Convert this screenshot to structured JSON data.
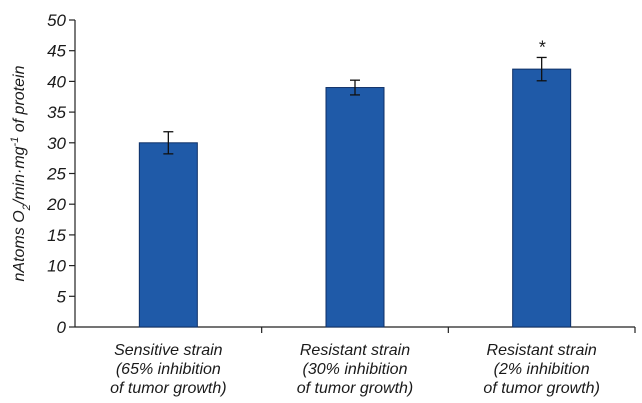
{
  "chart_data": {
    "type": "bar",
    "categories": [
      [
        "Sensitive strain",
        "(65% inhibition",
        "of tumor growth)"
      ],
      [
        "Resistant strain",
        "(30% inhibition",
        "of tumor growth)"
      ],
      [
        "Resistant strain",
        "(2% inhibition",
        "of tumor growth)"
      ]
    ],
    "values": [
      30,
      39,
      42
    ],
    "errors": [
      1.8,
      1.2,
      1.9
    ],
    "annotations": [
      "",
      "",
      "*"
    ],
    "ylabel": {
      "prefix": "nAtoms O",
      "sub": "2",
      "middle": "/min·mg",
      "sup": "-1",
      "suffix": " of protein"
    },
    "ylim": [
      0,
      50
    ],
    "yticks": [
      0,
      5,
      10,
      15,
      20,
      25,
      30,
      35,
      40,
      45,
      50
    ],
    "grid": false,
    "bar_color": "#1f5aa8",
    "bar_edge_color": "#0d2f66"
  }
}
